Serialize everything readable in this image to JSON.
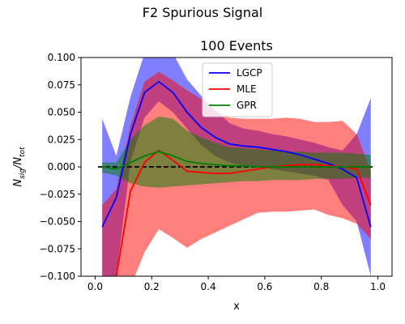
{
  "figure": {
    "suptitle": "F2 Spurious Signal"
  },
  "chart_data": {
    "type": "line",
    "title": "100 Events",
    "xlabel": "x",
    "ylabel": "N_sig/N_tot",
    "xlim": [
      -0.05,
      1.05
    ],
    "ylim": [
      -0.1,
      0.1
    ],
    "xticks": [
      "0.0",
      "0.2",
      "0.4",
      "0.6",
      "0.8",
      "1.0"
    ],
    "yticks": [
      "−0.100",
      "−0.075",
      "−0.050",
      "−0.025",
      "0.000",
      "0.025",
      "0.050",
      "0.075",
      "0.100"
    ],
    "reference_line": {
      "y": 0,
      "style": "dashed",
      "color": "#000000"
    },
    "legend": {
      "placement": "top-center"
    },
    "x": [
      0.025,
      0.075,
      0.125,
      0.175,
      0.225,
      0.275,
      0.325,
      0.375,
      0.425,
      0.475,
      0.525,
      0.575,
      0.625,
      0.675,
      0.725,
      0.775,
      0.825,
      0.875,
      0.925,
      0.975
    ],
    "series": [
      {
        "name": "LGCP",
        "color": "#0000ff",
        "values": [
          -0.055,
          -0.028,
          0.03,
          0.068,
          0.078,
          0.068,
          0.05,
          0.036,
          0.027,
          0.021,
          0.019,
          0.018,
          0.016,
          0.014,
          0.011,
          0.007,
          0.003,
          -0.002,
          -0.01,
          -0.055
        ],
        "band_low": [
          -0.1,
          -0.1,
          0.005,
          0.045,
          0.06,
          0.05,
          0.035,
          0.02,
          0.01,
          0.004,
          0.001,
          0.0,
          -0.002,
          -0.004,
          -0.006,
          -0.008,
          -0.012,
          -0.035,
          -0.05,
          -0.1
        ],
        "band_high": [
          0.044,
          0.01,
          0.064,
          0.104,
          0.104,
          0.104,
          0.08,
          0.065,
          0.052,
          0.04,
          0.035,
          0.033,
          0.03,
          0.028,
          0.025,
          0.022,
          0.018,
          0.015,
          0.03,
          0.063
        ]
      },
      {
        "name": "MLE",
        "color": "#ff0000",
        "values": [
          -0.11,
          -0.1,
          -0.022,
          0.004,
          0.015,
          0.006,
          -0.004,
          -0.005,
          -0.006,
          -0.006,
          -0.004,
          -0.002,
          0.0,
          0.001,
          0.002,
          0.002,
          0.001,
          0.0,
          -0.002,
          -0.035
        ],
        "band_low": [
          -0.11,
          -0.11,
          -0.11,
          -0.078,
          -0.057,
          -0.065,
          -0.074,
          -0.066,
          -0.06,
          -0.054,
          -0.048,
          -0.042,
          -0.041,
          -0.041,
          -0.04,
          -0.039,
          -0.044,
          -0.047,
          -0.052,
          -0.066
        ],
        "band_high": [
          -0.035,
          -0.02,
          0.038,
          0.078,
          0.087,
          0.079,
          0.07,
          0.062,
          0.051,
          0.045,
          0.044,
          0.044,
          0.044,
          0.045,
          0.044,
          0.041,
          0.041,
          0.042,
          0.03,
          -0.004
        ]
      },
      {
        "name": "GPR",
        "color": "#008000",
        "values": [
          0.0,
          -0.002,
          0.004,
          0.01,
          0.014,
          0.01,
          0.005,
          0.003,
          0.002,
          0.001,
          0.001,
          0.0,
          0.0,
          0.0,
          0.0,
          0.0,
          0.0,
          0.0,
          0.0,
          0.0
        ],
        "band_low": [
          -0.005,
          -0.008,
          -0.015,
          -0.018,
          -0.019,
          -0.018,
          -0.017,
          -0.016,
          -0.015,
          -0.014,
          -0.013,
          -0.013,
          -0.012,
          -0.012,
          -0.012,
          -0.011,
          -0.011,
          -0.011,
          -0.01,
          -0.01
        ],
        "band_high": [
          0.004,
          0.004,
          0.025,
          0.038,
          0.046,
          0.044,
          0.033,
          0.027,
          0.022,
          0.018,
          0.017,
          0.016,
          0.015,
          0.014,
          0.014,
          0.013,
          0.013,
          0.013,
          0.012,
          0.011
        ]
      }
    ]
  }
}
